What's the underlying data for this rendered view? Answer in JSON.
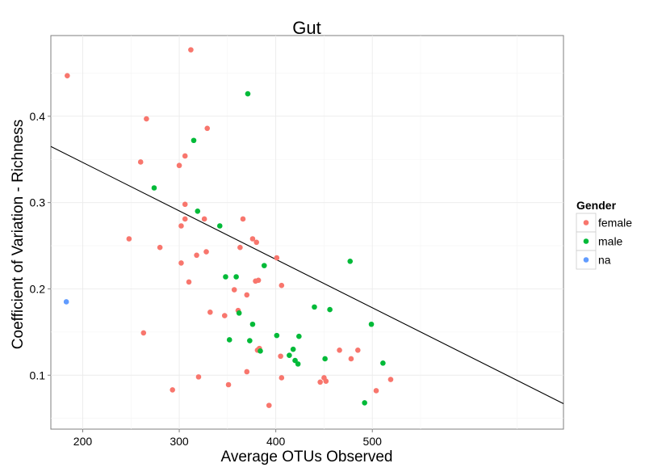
{
  "chart_data": {
    "type": "scatter",
    "title": "Gut",
    "xlabel": "Average OTUs Observed",
    "ylabel": "Coefficient of Variation - Richness",
    "xlim": [
      167,
      698
    ],
    "ylim": [
      0.0375,
      0.4935
    ],
    "xticks": [
      200,
      300,
      400,
      500
    ],
    "yticks": [
      0.1,
      0.2,
      0.3,
      0.4
    ],
    "xtick_labels": [
      "200",
      "300",
      "400",
      "500"
    ],
    "ytick_labels": [
      "0.1",
      "0.2",
      "0.3",
      "0.4"
    ],
    "grid": true,
    "legend": {
      "title": "Gender",
      "position": "right",
      "entries": [
        {
          "label": "female",
          "color": "#F8766D"
        },
        {
          "label": "male",
          "color": "#00BA38"
        },
        {
          "label": "na",
          "color": "#619CFF"
        }
      ]
    },
    "trendline": {
      "x": [
        167,
        698
      ],
      "y": [
        0.365,
        0.067
      ]
    },
    "series": [
      {
        "name": "female",
        "color": "#F8766D",
        "points": [
          [
            184,
            0.447
          ],
          [
            312,
            0.477
          ],
          [
            266,
            0.397
          ],
          [
            329,
            0.386
          ],
          [
            260,
            0.347
          ],
          [
            306,
            0.354
          ],
          [
            300,
            0.343
          ],
          [
            248,
            0.258
          ],
          [
            306,
            0.298
          ],
          [
            302,
            0.273
          ],
          [
            306,
            0.281
          ],
          [
            326,
            0.281
          ],
          [
            366,
            0.281
          ],
          [
            280,
            0.248
          ],
          [
            302,
            0.23
          ],
          [
            318,
            0.239
          ],
          [
            328,
            0.243
          ],
          [
            363,
            0.248
          ],
          [
            376,
            0.258
          ],
          [
            380,
            0.254
          ],
          [
            401,
            0.236
          ],
          [
            310,
            0.208
          ],
          [
            357,
            0.199
          ],
          [
            370,
            0.193
          ],
          [
            379,
            0.209
          ],
          [
            382,
            0.21
          ],
          [
            406,
            0.204
          ],
          [
            263,
            0.149
          ],
          [
            332,
            0.173
          ],
          [
            347,
            0.169
          ],
          [
            361,
            0.175
          ],
          [
            381,
            0.129
          ],
          [
            383,
            0.131
          ],
          [
            405,
            0.122
          ],
          [
            466,
            0.129
          ],
          [
            485,
            0.129
          ],
          [
            478,
            0.119
          ],
          [
            293,
            0.083
          ],
          [
            320,
            0.098
          ],
          [
            351,
            0.089
          ],
          [
            370,
            0.104
          ],
          [
            393,
            0.065
          ],
          [
            406,
            0.097
          ],
          [
            446,
            0.092
          ],
          [
            450,
            0.097
          ],
          [
            452,
            0.093
          ],
          [
            504,
            0.082
          ],
          [
            519,
            0.095
          ]
        ]
      },
      {
        "name": "male",
        "color": "#00BA38",
        "points": [
          [
            371,
            0.426
          ],
          [
            315,
            0.372
          ],
          [
            274,
            0.317
          ],
          [
            319,
            0.29
          ],
          [
            342,
            0.273
          ],
          [
            348,
            0.214
          ],
          [
            359,
            0.214
          ],
          [
            388,
            0.227
          ],
          [
            477,
            0.232
          ],
          [
            362,
            0.172
          ],
          [
            376,
            0.159
          ],
          [
            440,
            0.179
          ],
          [
            456,
            0.176
          ],
          [
            499,
            0.159
          ],
          [
            401,
            0.146
          ],
          [
            424,
            0.145
          ],
          [
            352,
            0.141
          ],
          [
            373,
            0.14
          ],
          [
            384,
            0.128
          ],
          [
            418,
            0.13
          ],
          [
            414,
            0.123
          ],
          [
            420,
            0.117
          ],
          [
            423,
            0.113
          ],
          [
            451,
            0.119
          ],
          [
            511,
            0.114
          ],
          [
            492,
            0.068
          ]
        ]
      },
      {
        "name": "na",
        "color": "#619CFF",
        "points": [
          [
            183,
            0.185
          ]
        ]
      }
    ]
  }
}
